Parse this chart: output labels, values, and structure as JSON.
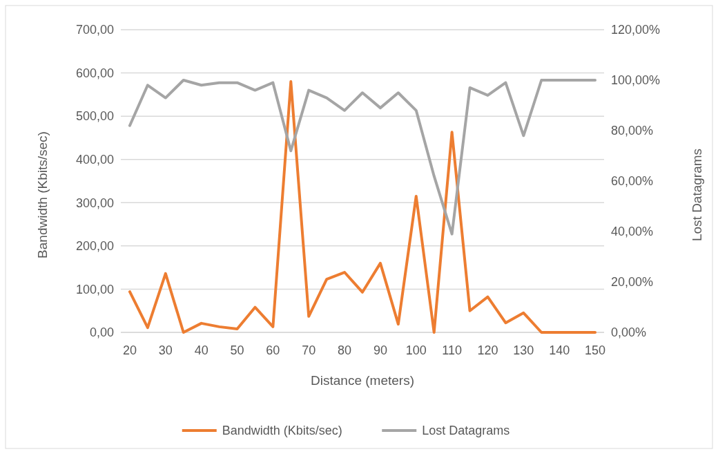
{
  "chart_data": {
    "type": "line",
    "xlabel": "Distance (meters)",
    "ylabel": "Bandwidth (Kbits/sec)",
    "y2label": "Lost Datagrams",
    "x": [
      20,
      25,
      30,
      35,
      40,
      45,
      50,
      55,
      60,
      65,
      70,
      75,
      80,
      85,
      90,
      95,
      100,
      105,
      110,
      115,
      120,
      125,
      130,
      135,
      140,
      145,
      150
    ],
    "xlim": [
      17.5,
      152.5
    ],
    "xticks": [
      20,
      30,
      40,
      50,
      60,
      70,
      80,
      90,
      100,
      110,
      120,
      130,
      140,
      150
    ],
    "ylim": [
      0,
      700
    ],
    "yticks": [
      {
        "value": 0,
        "label": "0,00"
      },
      {
        "value": 100,
        "label": "100,00"
      },
      {
        "value": 200,
        "label": "200,00"
      },
      {
        "value": 300,
        "label": "300,00"
      },
      {
        "value": 400,
        "label": "400,00"
      },
      {
        "value": 500,
        "label": "500,00"
      },
      {
        "value": 600,
        "label": "600,00"
      },
      {
        "value": 700,
        "label": "700,00"
      }
    ],
    "y2lim": [
      0,
      120
    ],
    "y2ticks": [
      {
        "value": 0,
        "label": "0,00%"
      },
      {
        "value": 20,
        "label": "20,00%"
      },
      {
        "value": 40,
        "label": "40,00%"
      },
      {
        "value": 60,
        "label": "60,00%"
      },
      {
        "value": 80,
        "label": "80,00%"
      },
      {
        "value": 100,
        "label": "100,00%"
      },
      {
        "value": 120,
        "label": "120,00%"
      }
    ],
    "grid": "y",
    "legend": "bottom",
    "marker": "none",
    "line_style": "solid",
    "series": [
      {
        "name": "Bandwidth (Kbits/sec)",
        "color": "#ed7d31",
        "values": [
          94,
          11,
          136,
          0,
          21,
          13,
          8,
          58,
          13,
          580,
          37,
          123,
          139,
          93,
          160,
          19,
          315,
          0,
          463,
          50,
          82,
          22,
          45,
          0,
          0,
          0,
          0
        ]
      },
      {
        "name": "Lost Datagrams",
        "color": "#a5a5a5",
        "axis": "y2",
        "values": [
          82,
          98,
          93,
          100,
          98,
          99,
          99,
          96,
          99,
          72,
          96,
          93,
          88,
          95,
          89,
          95,
          88,
          62,
          39,
          97,
          94,
          99,
          78,
          100,
          100,
          100,
          100
        ]
      }
    ]
  }
}
